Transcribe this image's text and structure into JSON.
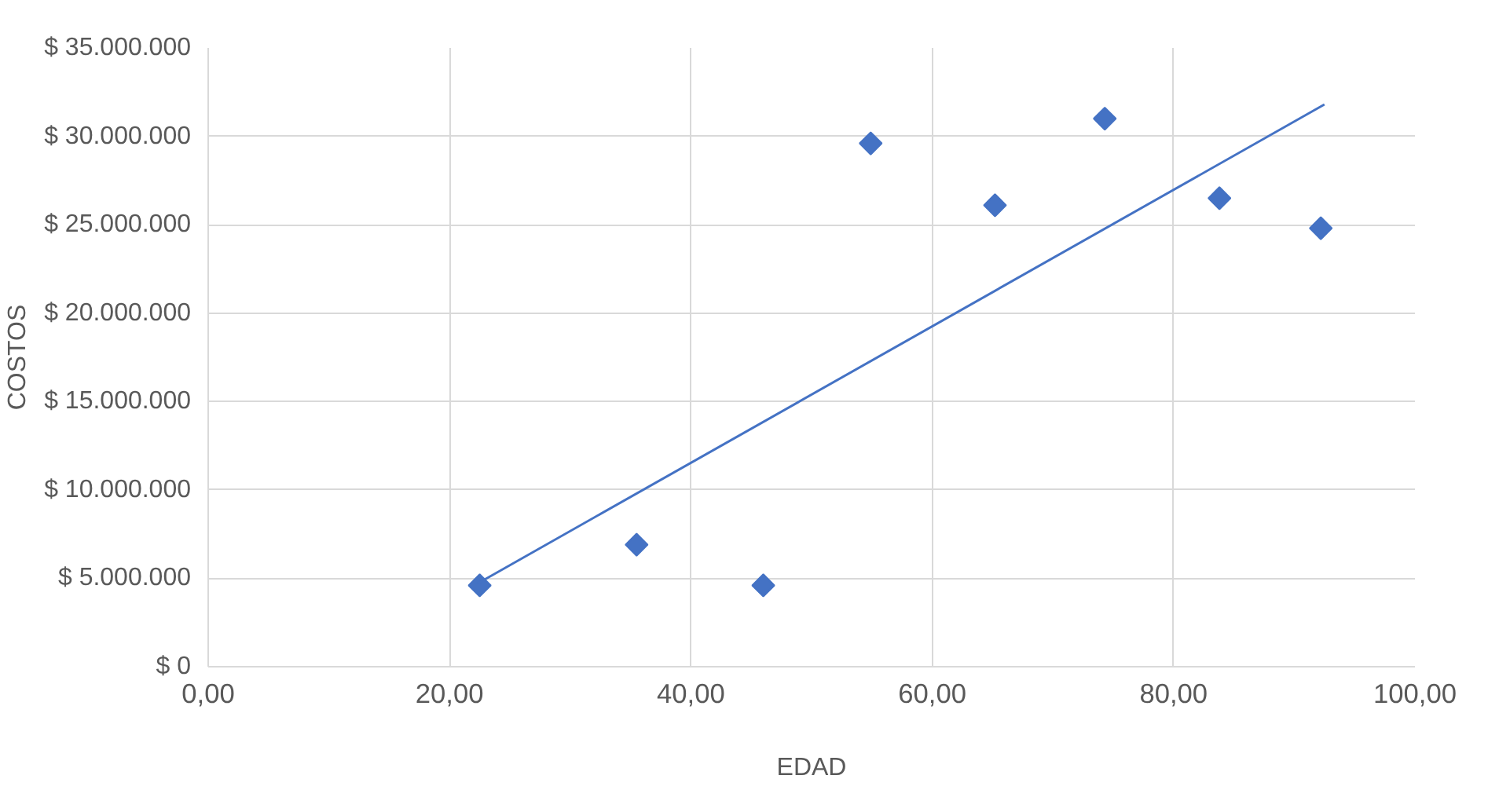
{
  "chart_data": {
    "type": "scatter",
    "xlabel": "EDAD",
    "ylabel": "COSTOS",
    "x": [
      22.5,
      35.5,
      46.0,
      54.9,
      65.2,
      74.3,
      83.8,
      92.2
    ],
    "series": [
      {
        "color": "#4472c4",
        "values": [
          4600000,
          6900000,
          4600000,
          29600000,
          26100000,
          31000000,
          26500000,
          24800000
        ]
      },
      {
        "type": "line",
        "marker": "none",
        "color": "#4472c4",
        "x": [
          22.3,
          92.5
        ],
        "values": [
          4700000,
          31800000
        ]
      }
    ],
    "xlim": [
      0,
      100
    ],
    "ylim": [
      0,
      35000000
    ],
    "xticks": [
      {
        "value": 0,
        "label": "0,00"
      },
      {
        "value": 20,
        "label": "20,00"
      },
      {
        "value": 40,
        "label": "40,00"
      },
      {
        "value": 60,
        "label": "60,00"
      },
      {
        "value": 80,
        "label": "80,00"
      },
      {
        "value": 100,
        "label": "100,00"
      }
    ],
    "yticks": [
      {
        "value": 0,
        "label": "$ 0"
      },
      {
        "value": 5000000,
        "label": "$ 5.000.000"
      },
      {
        "value": 10000000,
        "label": "$ 10.000.000"
      },
      {
        "value": 15000000,
        "label": "$ 15.000.000"
      },
      {
        "value": 20000000,
        "label": "$ 20.000.000"
      },
      {
        "value": 25000000,
        "label": "$ 25.000.000"
      },
      {
        "value": 30000000,
        "label": "$ 30.000.000"
      },
      {
        "value": 35000000,
        "label": "$ 35.000.000"
      }
    ],
    "grid": true,
    "marker": "diamond",
    "line_style": "solid"
  }
}
